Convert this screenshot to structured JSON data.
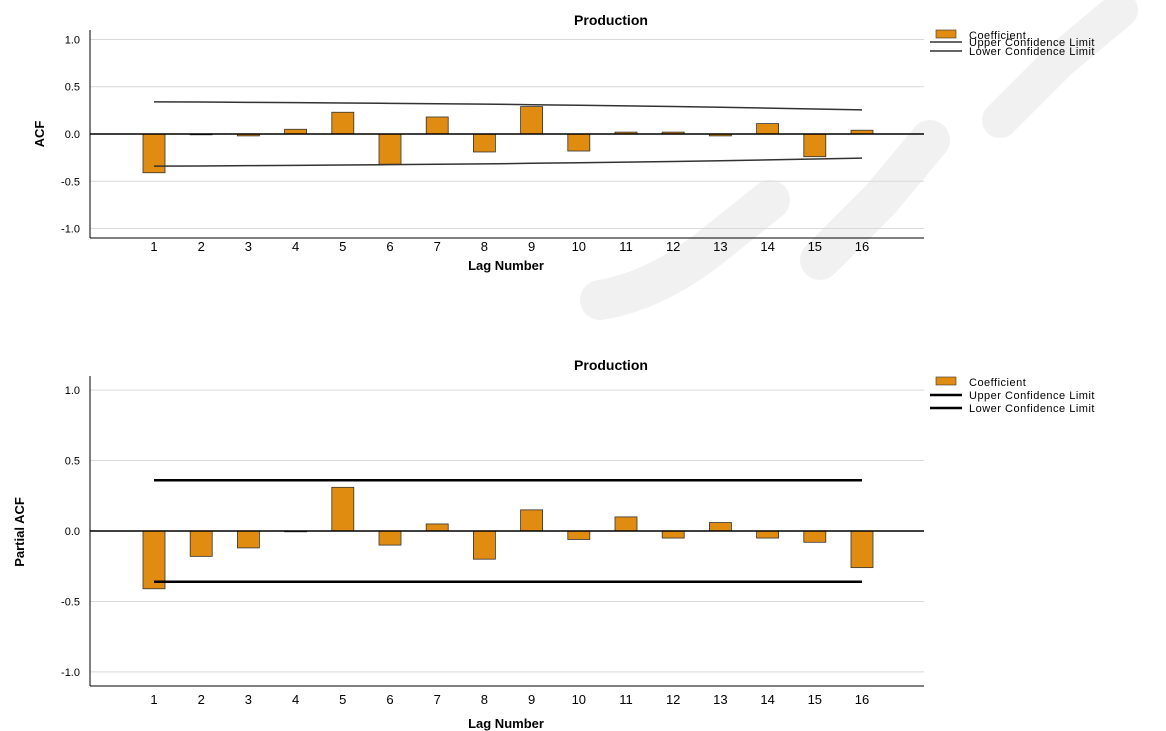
{
  "colors": {
    "bar": "#e08c10",
    "acf_conf_line": "#333333",
    "pacf_conf_line": "#000000",
    "grid": "#d9d9d9"
  },
  "chart_data": [
    {
      "type": "bar",
      "title": "Production",
      "xlabel": "Lag Number",
      "ylabel": "ACF",
      "categories": [
        "1",
        "2",
        "3",
        "4",
        "5",
        "6",
        "7",
        "8",
        "9",
        "10",
        "11",
        "12",
        "13",
        "14",
        "15",
        "16"
      ],
      "yticks": [
        "1.0",
        "0.5",
        "0.0",
        "-0.5",
        "-1.0"
      ],
      "ylim": [
        -1.1,
        1.1
      ],
      "series": [
        {
          "name": "Coefficient",
          "values": [
            -0.41,
            0.0,
            -0.02,
            0.05,
            0.23,
            -0.32,
            0.18,
            -0.19,
            0.29,
            -0.18,
            0.02,
            0.02,
            -0.02,
            0.11,
            -0.24,
            0.04
          ]
        },
        {
          "name": "Upper Confidence Limit",
          "values": [
            0.34,
            0.338,
            0.335,
            0.332,
            0.328,
            0.324,
            0.32,
            0.316,
            0.31,
            0.304,
            0.298,
            0.291,
            0.283,
            0.274,
            0.264,
            0.255
          ]
        },
        {
          "name": "Lower Confidence Limit",
          "values": [
            -0.34,
            -0.338,
            -0.335,
            -0.332,
            -0.328,
            -0.324,
            -0.32,
            -0.316,
            -0.31,
            -0.304,
            -0.298,
            -0.291,
            -0.283,
            -0.274,
            -0.264,
            -0.255
          ]
        }
      ],
      "legend": [
        "Coefficient",
        "Upper Confidence Limit",
        "Lower Confidence Limit"
      ],
      "legend_position": "top-right",
      "grid": true
    },
    {
      "type": "bar",
      "title": "Production",
      "xlabel": "Lag Number",
      "ylabel": "Partial ACF",
      "categories": [
        "1",
        "2",
        "3",
        "4",
        "5",
        "6",
        "7",
        "8",
        "9",
        "10",
        "11",
        "12",
        "13",
        "14",
        "15",
        "16"
      ],
      "yticks": [
        "1.0",
        "0.5",
        "0.0",
        "-0.5",
        "-1.0"
      ],
      "ylim": [
        -1.1,
        1.1
      ],
      "series": [
        {
          "name": "Coefficient",
          "values": [
            -0.41,
            -0.18,
            -0.12,
            0.0,
            0.31,
            -0.1,
            0.05,
            -0.2,
            0.15,
            -0.06,
            0.1,
            -0.05,
            0.06,
            -0.05,
            -0.08,
            -0.26
          ]
        },
        {
          "name": "Upper Confidence Limit",
          "values": [
            0.36,
            0.36,
            0.36,
            0.36,
            0.36,
            0.36,
            0.36,
            0.36,
            0.36,
            0.36,
            0.36,
            0.36,
            0.36,
            0.36,
            0.36,
            0.36
          ]
        },
        {
          "name": "Lower Confidence Limit",
          "values": [
            -0.36,
            -0.36,
            -0.36,
            -0.36,
            -0.36,
            -0.36,
            -0.36,
            -0.36,
            -0.36,
            -0.36,
            -0.36,
            -0.36,
            -0.36,
            -0.36,
            -0.36,
            -0.36
          ]
        }
      ],
      "legend": [
        "Coefficient",
        "Upper Confidence Limit",
        "Lower Confidence Limit"
      ],
      "legend_position": "top-right",
      "grid": true
    }
  ]
}
